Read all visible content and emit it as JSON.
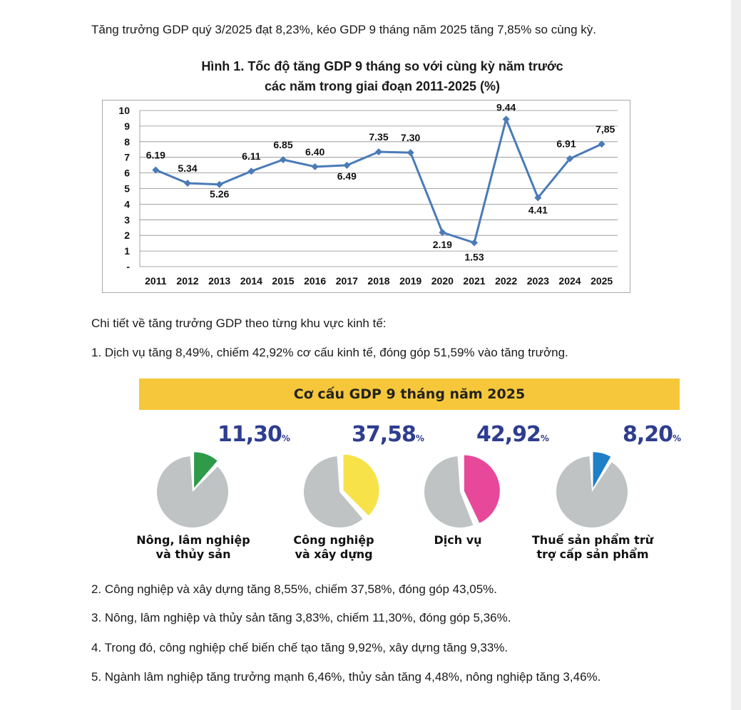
{
  "intro": "Tăng trưởng GDP quý 3/2025 đạt 8,23%, kéo GDP 9 tháng năm 2025 tăng 7,85% so cùng kỳ.",
  "figure_title_line1": "Hình 1. Tốc độ tăng GDP 9 tháng so với cùng kỳ năm trước",
  "figure_title_line2": "các năm trong giai đoạn 2011-2025 (%)",
  "chart_data": {
    "type": "line",
    "title": "Hình 1. Tốc độ tăng GDP 9 tháng so với cùng kỳ năm trước các năm trong giai đoạn 2011-2025 (%)",
    "categories": [
      "2011",
      "2012",
      "2013",
      "2014",
      "2015",
      "2016",
      "2017",
      "2018",
      "2019",
      "2020",
      "2021",
      "2022",
      "2023",
      "2024",
      "2025"
    ],
    "values": [
      6.19,
      5.34,
      5.26,
      6.11,
      6.85,
      6.4,
      6.49,
      7.35,
      7.3,
      2.19,
      1.53,
      9.44,
      4.41,
      6.91,
      7.85
    ],
    "data_labels": [
      "6.19",
      "5.34",
      "5.26",
      "6.11",
      "6.85",
      "6.40",
      "6.49",
      "7.35",
      "7.30",
      "2.19",
      "1.53",
      "9.44",
      "4.41",
      "6.91",
      "7,85"
    ],
    "y_ticks": [
      "-",
      "1",
      "2",
      "3",
      "4",
      "5",
      "6",
      "7",
      "8",
      "9",
      "10"
    ],
    "ylim": [
      0,
      10
    ],
    "grid": true,
    "color": "#4a7bb7",
    "xlabel": "",
    "ylabel": ""
  },
  "detail_heading": "Chi tiết về tăng trưởng GDP theo từng khu vực kinh tế:",
  "item1": "1. Dịch vụ tăng 8,49%, chiếm 42,92% cơ cấu kinh tế, đóng góp 51,59% vào tăng trưởng.",
  "structure": {
    "title": "Cơ cấu GDP 9 tháng năm 2025",
    "percent_sign": "%",
    "sectors": [
      {
        "value": "11,30",
        "fraction": 0.113,
        "color": "#2e9a4a",
        "label1": "Nông, lâm nghiệp",
        "label2": "và thủy sản"
      },
      {
        "value": "37,58",
        "fraction": 0.3758,
        "color": "#f7e24a",
        "label1": "Công nghiệp",
        "label2": "và xây dựng"
      },
      {
        "value": "42,92",
        "fraction": 0.4292,
        "color": "#e8489a",
        "label1": "Dịch vụ",
        "label2": ""
      },
      {
        "value": "8,20",
        "fraction": 0.082,
        "color": "#1f7fc6",
        "label1": "Thuế sản phẩm trừ",
        "label2": "trợ cấp sản phẩm"
      }
    ],
    "rest_color": "#bfc3c4"
  },
  "item2": "2. Công nghiệp và xây dựng tăng 8,55%, chiếm 37,58%, đóng góp 43,05%.",
  "item3": "3. Nông, lâm nghiệp và thủy sản tăng 3,83%, chiếm 11,30%, đóng góp 5,36%.",
  "item4": "4. Trong đó, công nghiệp chế biến chế tạo tăng 9,92%, xây dựng tăng 9,33%.",
  "item5": "5. Ngành lâm nghiệp tăng trưởng mạnh 6,46%, thủy sản tăng 4,48%, nông nghiệp tăng 3,46%."
}
